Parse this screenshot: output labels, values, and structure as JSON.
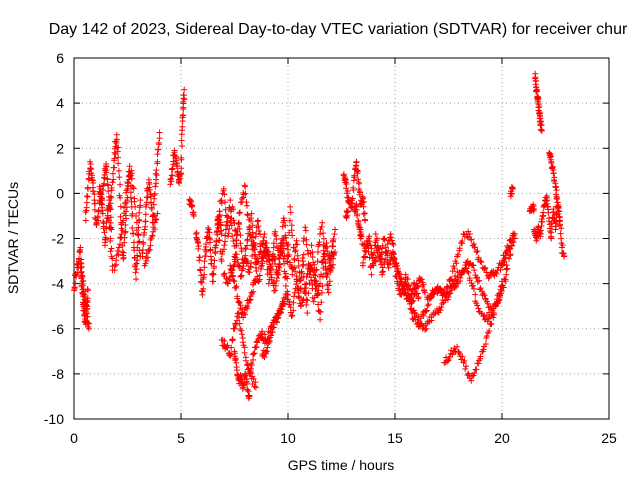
{
  "chart_data": {
    "type": "scatter",
    "title": "Day 142 of 2023, Sidereal Day-to-day VTEC variation (SDTVAR) for receiver chur",
    "xlabel": "GPS time / hours",
    "ylabel": "SDTVAR / TECUs",
    "xlim": [
      0,
      25
    ],
    "ylim": [
      -10,
      6
    ],
    "xticks": [
      0,
      5,
      10,
      15,
      20,
      25
    ],
    "yticks": [
      -10,
      -8,
      -6,
      -4,
      -2,
      0,
      2,
      4,
      6
    ],
    "xtick_labels": [
      "0",
      "5",
      "10",
      "15",
      "20",
      "25"
    ],
    "ytick_labels": [
      "-10",
      "-8",
      "-6",
      "-4",
      "-2",
      "0",
      "2",
      "4",
      "6"
    ],
    "grid": true,
    "marker": "plus",
    "color": "#ff0000",
    "series": [
      {
        "name": "SDTVAR",
        "segments": [
          {
            "x": [
              0.0,
              0.1,
              0.2,
              0.3,
              0.35,
              0.4,
              0.45,
              0.5,
              0.55,
              0.6,
              0.65
            ],
            "y": [
              -4.3,
              -3.6,
              -3.1,
              -2.4,
              -3.7,
              -4.4,
              -5.0,
              -5.4,
              -5.8,
              -5.1,
              -4.3
            ]
          },
          {
            "x": [
              0.3,
              0.4,
              0.5,
              0.6,
              0.7
            ],
            "y": [
              -3.3,
              -3.9,
              -4.6,
              -5.3,
              -6.0
            ]
          },
          {
            "x": [
              0.55,
              0.65,
              0.75,
              0.85,
              0.95,
              1.05,
              1.15,
              1.25,
              1.35,
              1.45,
              1.55,
              1.65,
              1.75
            ],
            "y": [
              -1.2,
              0.2,
              1.4,
              0.6,
              -0.3,
              -1.4,
              -0.8,
              0.2,
              -0.9,
              -2.3,
              -1.1,
              -0.3,
              -1.6
            ]
          },
          {
            "x": [
              1.2,
              1.3,
              1.4,
              1.5,
              1.6,
              1.7,
              1.8
            ],
            "y": [
              0.3,
              -0.5,
              0.7,
              1.3,
              0.1,
              -2.0,
              -3.4
            ]
          },
          {
            "x": [
              1.7,
              1.8,
              1.9,
              2.0,
              2.1,
              2.2,
              2.3,
              2.4,
              2.5,
              2.6,
              2.7,
              2.8,
              2.9,
              3.0,
              3.1
            ],
            "y": [
              -0.7,
              0.5,
              1.8,
              2.6,
              1.0,
              -1.3,
              -2.9,
              -1.4,
              0.2,
              1.2,
              -0.6,
              -2.4,
              -3.8,
              -1.8,
              -0.3
            ]
          },
          {
            "x": [
              1.9,
              2.1,
              2.3,
              2.5,
              2.7,
              2.9,
              3.1
            ],
            "y": [
              -3.4,
              -2.4,
              -1.2,
              0.5,
              0.9,
              -1.0,
              -2.8
            ]
          },
          {
            "x": [
              3.2,
              3.3,
              3.4,
              3.5,
              3.6,
              3.7,
              3.8,
              3.9,
              4.0
            ],
            "y": [
              -2.8,
              -1.6,
              -0.4,
              0.6,
              -0.4,
              -1.3,
              0.3,
              1.4,
              2.7
            ]
          },
          {
            "x": [
              3.3,
              3.5,
              3.7,
              3.9
            ],
            "y": [
              -3.2,
              -2.5,
              -1.7,
              -0.9
            ]
          },
          {
            "x": [
              4.5,
              4.6,
              4.7,
              4.8,
              4.9,
              5.0,
              5.05,
              5.1,
              5.15
            ],
            "y": [
              0.4,
              1.1,
              1.9,
              1.2,
              0.5,
              0.9,
              2.8,
              3.8,
              4.6
            ]
          },
          {
            "x": [
              5.4,
              5.5,
              5.6
            ],
            "y": [
              -0.3,
              -0.6,
              -1.0
            ]
          },
          {
            "x": [
              5.7,
              5.8,
              5.9,
              6.0,
              6.1,
              6.2,
              6.3,
              6.4,
              6.5,
              6.6,
              6.7,
              6.8,
              6.9
            ],
            "y": [
              -1.8,
              -2.2,
              -3.4,
              -4.5,
              -3.0,
              -2.0,
              -1.6,
              -2.8,
              -3.9,
              -2.6,
              -1.4,
              -1.0,
              -1.8
            ]
          },
          {
            "x": [
              6.6,
              6.8,
              7.0,
              7.2,
              7.4,
              7.6,
              7.8,
              8.0,
              8.2,
              8.4,
              8.6,
              8.8,
              9.0,
              9.2,
              9.4,
              9.6,
              9.8,
              10.0,
              10.2,
              10.4,
              10.6,
              10.8,
              11.0,
              11.2,
              11.4,
              11.6,
              11.8,
              12.0,
              12.2
            ],
            "y": [
              -2.4,
              -0.8,
              0.2,
              -1.9,
              -0.6,
              -2.3,
              -0.4,
              0.3,
              -1.6,
              -2.5,
              -1.2,
              -3.0,
              -2.2,
              -3.4,
              -1.7,
              -2.9,
              -1.1,
              -2.5,
              -3.6,
              -2.1,
              -4.2,
              -1.5,
              -3.3,
              -4.8,
              -2.6,
              -1.3,
              -3.7,
              -2.9,
              -1.6
            ]
          },
          {
            "x": [
              6.7,
              6.9,
              7.1,
              7.3,
              7.5,
              7.7,
              7.9,
              8.1,
              8.3,
              8.5,
              8.7,
              8.9,
              9.1,
              9.3,
              9.5,
              9.7,
              9.9,
              10.1,
              10.3,
              10.5,
              10.7,
              10.9,
              11.1,
              11.3,
              11.5,
              11.7,
              11.9,
              12.1
            ],
            "y": [
              -1.2,
              -3.0,
              -1.6,
              -0.3,
              -2.8,
              -1.3,
              -3.1,
              -2.1,
              -0.9,
              -3.3,
              -2.6,
              -1.8,
              -4.0,
              -2.7,
              -3.6,
              -2.2,
              -4.1,
              -0.6,
              -2.9,
              -4.6,
              -3.0,
              -5.3,
              -2.3,
              -3.9,
              -5.6,
              -2.8,
              -4.4,
              -2.1
            ]
          },
          {
            "x": [
              7.0,
              7.2,
              7.4,
              7.6,
              7.8,
              8.0,
              8.2,
              8.4,
              8.6,
              8.8,
              9.0,
              9.2,
              9.4,
              9.6,
              9.8,
              10.0,
              10.2,
              10.4,
              10.6,
              10.8,
              11.0,
              11.2,
              11.4,
              11.6,
              11.8,
              12.0,
              12.2
            ],
            "y": [
              -3.6,
              -4.0,
              -3.4,
              -2.7,
              -3.7,
              -2.9,
              -3.5,
              -2.2,
              -3.9,
              -3.1,
              -2.4,
              -3.6,
              -4.3,
              -3.3,
              -2.0,
              -4.7,
              -5.4,
              -3.8,
              -5.0,
              -4.2,
              -3.2,
              -3.6,
              -4.5,
              -3.0,
              -2.2,
              -3.4,
              -2.6
            ]
          },
          {
            "x": [
              6.9,
              7.1,
              7.3,
              7.5,
              7.7,
              7.9,
              8.1,
              8.3,
              8.5
            ],
            "y": [
              -6.5,
              -6.8,
              -7.2,
              -6.0,
              -5.3,
              -6.6,
              -7.6,
              -8.2,
              -8.6
            ]
          },
          {
            "x": [
              7.5,
              7.6,
              7.7,
              7.8,
              7.9,
              8.0,
              8.1,
              8.2
            ],
            "y": [
              -7.0,
              -7.7,
              -8.3,
              -8.1,
              -8.6,
              -8.0,
              -8.7,
              -9.0
            ]
          },
          {
            "x": [
              8.2,
              8.4,
              8.6,
              8.8,
              9.0,
              9.2,
              9.4,
              9.6,
              9.8
            ],
            "y": [
              -8.0,
              -7.1,
              -6.5,
              -6.2,
              -6.6,
              -5.9,
              -5.5,
              -5.2,
              -4.9
            ]
          },
          {
            "x": [
              8.8,
              9.0,
              9.2,
              9.4,
              9.6,
              9.8,
              10.0
            ],
            "y": [
              -7.2,
              -7.0,
              -6.3,
              -5.7,
              -5.3,
              -4.8,
              -4.5
            ]
          },
          {
            "x": [
              7.3,
              7.5,
              7.7,
              7.9,
              8.1,
              8.3,
              8.5
            ],
            "y": [
              -3.2,
              -3.9,
              -4.8,
              -5.5,
              -5.0,
              -4.4,
              -3.8
            ]
          },
          {
            "x": [
              12.6,
              12.7,
              12.8,
              12.9,
              13.0,
              13.1,
              13.2,
              13.3,
              13.4,
              13.5,
              13.6
            ],
            "y": [
              0.8,
              0.6,
              -0.2,
              -0.4,
              -0.6,
              0.8,
              1.4,
              0.5,
              -0.5,
              -0.2,
              -1.2
            ]
          },
          {
            "x": [
              12.7,
              12.8
            ],
            "y": [
              -1.0,
              -0.8
            ]
          },
          {
            "x": [
              13.1,
              13.2,
              13.3,
              13.4
            ],
            "y": [
              -0.8,
              -0.6,
              -1.4,
              -2.0
            ]
          },
          {
            "x": [
              13.4,
              13.6,
              13.8,
              14.0,
              14.2,
              14.4,
              14.6,
              14.8,
              15.0,
              15.2,
              15.4,
              15.6,
              15.8,
              16.0,
              16.2,
              16.4
            ],
            "y": [
              -1.6,
              -2.8,
              -1.9,
              -3.2,
              -2.4,
              -3.6,
              -2.6,
              -1.8,
              -2.9,
              -3.6,
              -4.3,
              -3.8,
              -4.8,
              -4.2,
              -3.8,
              -4.4
            ]
          },
          {
            "x": [
              13.5,
              13.7,
              13.9,
              14.1,
              14.3,
              14.5,
              14.7,
              14.9,
              15.1,
              15.3,
              15.5,
              15.7,
              15.9,
              16.1
            ],
            "y": [
              -3.2,
              -2.1,
              -3.6,
              -1.8,
              -3.0,
              -2.0,
              -3.3,
              -2.6,
              -3.9,
              -4.5,
              -3.6,
              -4.9,
              -4.0,
              -4.6
            ]
          },
          {
            "x": [
              14.9,
              15.2,
              15.5,
              15.8,
              16.1,
              16.4,
              16.7,
              17.0,
              17.3,
              17.6,
              17.9,
              18.2,
              18.5,
              18.8,
              19.1,
              19.4,
              19.7,
              20.0,
              20.3,
              20.6
            ],
            "y": [
              -3.0,
              -3.7,
              -4.4,
              -5.3,
              -5.9,
              -5.2,
              -4.6,
              -4.2,
              -4.5,
              -3.8,
              -2.8,
              -1.8,
              -1.8,
              -2.6,
              -3.3,
              -3.7,
              -3.5,
              -3.1,
              -2.4,
              -2.0
            ]
          },
          {
            "x": [
              15.4,
              15.7,
              16.0,
              16.3,
              16.6,
              16.9,
              17.2,
              17.5,
              17.8,
              18.1,
              18.4,
              18.7,
              19.0,
              19.3,
              19.6,
              19.9,
              20.2
            ],
            "y": [
              -4.2,
              -4.8,
              -5.4,
              -6.0,
              -5.7,
              -5.3,
              -4.9,
              -4.6,
              -4.1,
              -3.6,
              -3.0,
              -3.4,
              -4.2,
              -4.8,
              -5.1,
              -4.6,
              -3.6
            ]
          },
          {
            "x": [
              16.5,
              16.8,
              17.1,
              17.4,
              17.7,
              18.0,
              18.3,
              18.6,
              18.9,
              19.2,
              19.5,
              19.8,
              20.1,
              20.4
            ],
            "y": [
              -4.6,
              -4.4,
              -4.2,
              -4.5,
              -4.0,
              -3.5,
              -3.3,
              -4.1,
              -5.1,
              -5.6,
              -5.4,
              -4.8,
              -3.8,
              -2.7
            ]
          },
          {
            "x": [
              17.3,
              17.6,
              17.9,
              18.2,
              18.5,
              18.8,
              19.1,
              19.4,
              19.7,
              20.0
            ],
            "y": [
              -7.5,
              -7.1,
              -6.8,
              -7.5,
              -8.2,
              -7.8,
              -7.0,
              -6.1,
              -5.0,
              -3.9
            ]
          },
          {
            "x": [
              20.0,
              20.2,
              20.4,
              20.6
            ],
            "y": [
              -3.2,
              -2.6,
              -2.1,
              -1.8
            ]
          },
          {
            "x": [
              20.4,
              20.5
            ],
            "y": [
              0.0,
              0.2
            ]
          },
          {
            "x": [
              21.3,
              21.4,
              21.5
            ],
            "y": [
              -0.8,
              -0.6,
              -0.7
            ]
          },
          {
            "x": [
              21.5,
              21.6,
              21.7,
              21.8,
              21.9,
              22.0,
              22.1,
              22.2,
              22.3,
              22.4,
              22.5,
              22.6,
              22.7,
              22.8,
              22.9
            ],
            "y": [
              -1.6,
              -2.1,
              -1.5,
              -1.9,
              -1.0,
              -0.5,
              -0.2,
              -1.1,
              -2.0,
              -0.7,
              -1.6,
              -0.4,
              -1.2,
              -2.4,
              -2.8
            ]
          },
          {
            "x": [
              21.55,
              21.6,
              21.65,
              21.7,
              21.75,
              21.8,
              21.85
            ],
            "y": [
              5.3,
              4.7,
              4.3,
              4.0,
              3.6,
              3.2,
              2.8
            ]
          },
          {
            "x": [
              22.2,
              22.3,
              22.4,
              22.5,
              22.6,
              22.7
            ],
            "y": [
              1.8,
              1.4,
              0.9,
              0.3,
              -0.4,
              -1.2
            ]
          }
        ]
      }
    ]
  },
  "colors": {
    "marker": "#ff0000",
    "axis": "#000000",
    "grid": "#a0a0a0",
    "background": "#ffffff"
  }
}
